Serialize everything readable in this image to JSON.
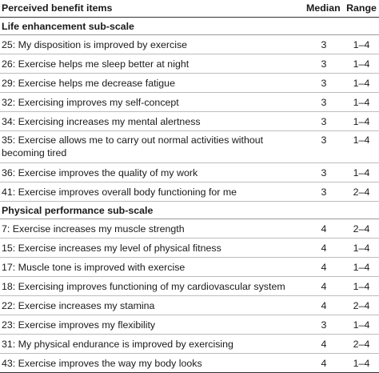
{
  "header": {
    "item_label": "Perceived benefit items",
    "median_label": "Median",
    "range_label": "Range"
  },
  "sections": [
    {
      "title": "Life enhancement sub-scale",
      "rows": [
        {
          "item": "25: My disposition is improved by exercise",
          "median": "3",
          "range": "1–4"
        },
        {
          "item": "26: Exercise helps me sleep better at night",
          "median": "3",
          "range": "1–4"
        },
        {
          "item": "29: Exercise helps me decrease fatigue",
          "median": "3",
          "range": "1–4"
        },
        {
          "item": "32: Exercising improves my self-concept",
          "median": "3",
          "range": "1–4"
        },
        {
          "item": "34: Exercising increases my mental alertness",
          "median": "3",
          "range": "1–4"
        },
        {
          "item": "35: Exercise allows me to carry out normal activities without becoming tired",
          "median": "3",
          "range": "1–4"
        },
        {
          "item": "36: Exercise improves the quality of my work",
          "median": "3",
          "range": "1–4"
        },
        {
          "item": "41: Exercise improves overall body functioning for me",
          "median": "3",
          "range": "2–4"
        }
      ]
    },
    {
      "title": "Physical performance sub-scale",
      "rows": [
        {
          "item": "7: Exercise increases my muscle strength",
          "median": "4",
          "range": "2–4"
        },
        {
          "item": "15: Exercise increases my level of physical fitness",
          "median": "4",
          "range": "1–4"
        },
        {
          "item": "17: Muscle tone is improved with exercise",
          "median": "4",
          "range": "1–4"
        },
        {
          "item": "18: Exercising improves functioning of my cardiovascular system",
          "median": "4",
          "range": "1–4"
        },
        {
          "item": "22: Exercise increases my stamina",
          "median": "4",
          "range": "2–4"
        },
        {
          "item": "23: Exercise improves my flexibility",
          "median": "3",
          "range": "1–4"
        },
        {
          "item": "31: My physical endurance is improved by exercising",
          "median": "4",
          "range": "2–4"
        },
        {
          "item": "43: Exercise improves the way my body looks",
          "median": "4",
          "range": "1–4"
        }
      ]
    }
  ]
}
